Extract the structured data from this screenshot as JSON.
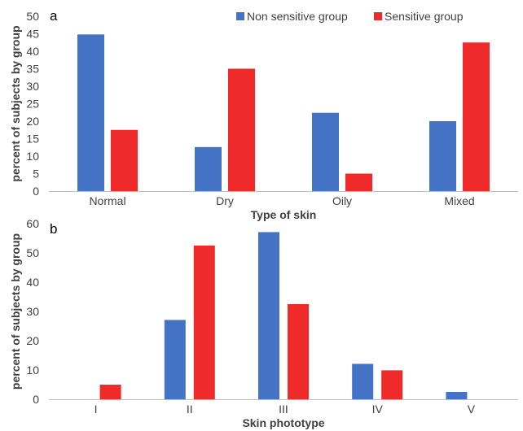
{
  "colors": {
    "non_sensitive": "#4472c4",
    "sensitive": "#ee2a2a",
    "axis": "#bfbfbf",
    "text": "#404040"
  },
  "chart_data": [
    {
      "type": "bar",
      "panel_label": "a",
      "categories": [
        "Normal",
        "Dry",
        "Oily",
        "Mixed"
      ],
      "series": [
        {
          "name": "Non sensitive group",
          "values": [
            44.8,
            12.6,
            22.4,
            20.0
          ]
        },
        {
          "name": "Sensitive group",
          "values": [
            17.5,
            35.0,
            5.0,
            42.5
          ]
        }
      ],
      "xlabel": "Type of skin",
      "ylabel": "percent of subjects by group",
      "ylim": [
        0,
        50
      ],
      "yticks": [
        0,
        5,
        10,
        15,
        20,
        25,
        30,
        35,
        40,
        45,
        50
      ],
      "grid": false,
      "legend": "top-right"
    },
    {
      "type": "bar",
      "panel_label": "b",
      "categories": [
        "I",
        "II",
        "III",
        "IV",
        "V"
      ],
      "series": [
        {
          "name": "Non sensitive group",
          "values": [
            0,
            27.1,
            57.1,
            12.1,
            2.5
          ]
        },
        {
          "name": "Sensitive group",
          "values": [
            5.0,
            52.5,
            32.5,
            9.9,
            0
          ]
        }
      ],
      "xlabel": "Skin phototype",
      "ylabel": "percent of subjects by group",
      "ylim": [
        0,
        60
      ],
      "yticks": [
        0,
        10,
        20,
        30,
        40,
        50,
        60
      ],
      "grid": false,
      "legend": "none"
    }
  ]
}
